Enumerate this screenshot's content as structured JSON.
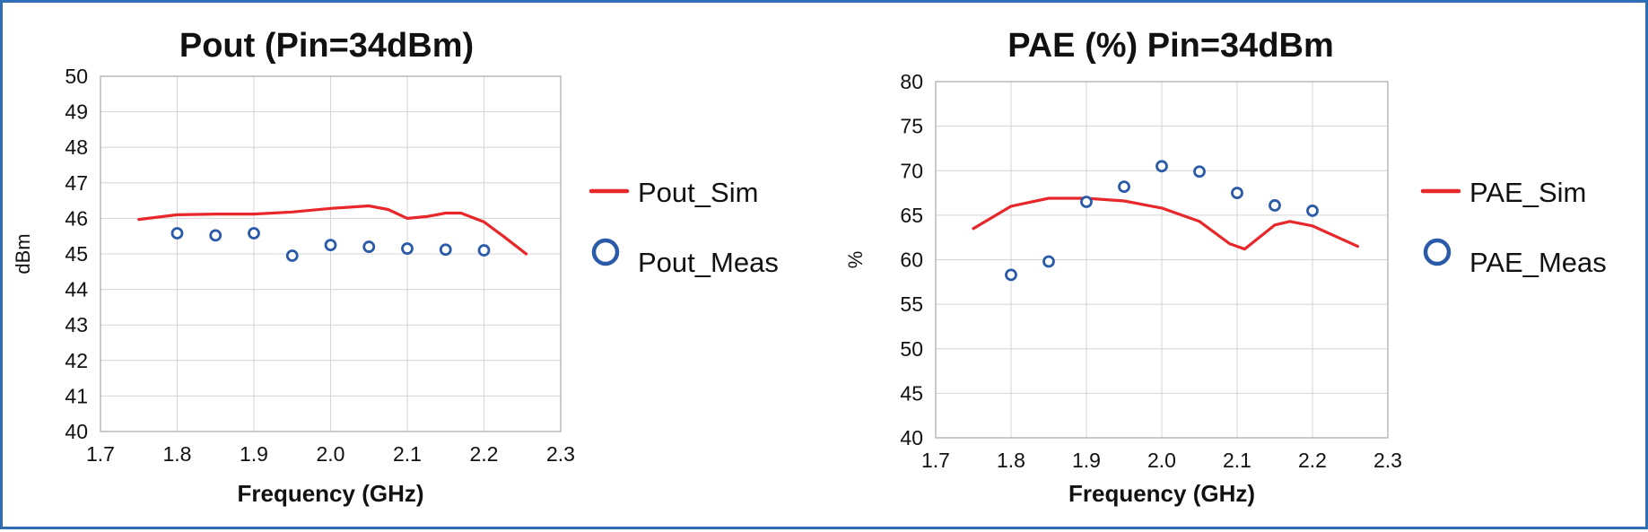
{
  "chart_data": [
    {
      "type": "line",
      "title": "Pout (Pin=34dBm)",
      "xlabel": "Frequency (GHz)",
      "ylabel": "dBm",
      "xlim": [
        1.7,
        2.3
      ],
      "ylim": [
        40,
        50
      ],
      "x_ticks": [
        "1.7",
        "1.8",
        "1.9",
        "2.0",
        "2.1",
        "2.2",
        "2.3"
      ],
      "y_ticks": [
        "40",
        "41",
        "42",
        "43",
        "44",
        "45",
        "46",
        "47",
        "48",
        "49",
        "50"
      ],
      "grid": true,
      "legend_position": "right",
      "series": [
        {
          "name": "Pout_Sim",
          "kind": "line",
          "color": "#e8272a",
          "x": [
            1.75,
            1.8,
            1.85,
            1.9,
            1.95,
            2.0,
            2.05,
            2.075,
            2.1,
            2.125,
            2.15,
            2.17,
            2.2,
            2.225,
            2.255
          ],
          "y": [
            45.97,
            46.1,
            46.12,
            46.12,
            46.18,
            46.28,
            46.35,
            46.25,
            46.0,
            46.05,
            46.15,
            46.15,
            45.9,
            45.5,
            45.0
          ]
        },
        {
          "name": "Pout_Meas",
          "kind": "scatter",
          "color": "#2a5aa8",
          "x": [
            1.8,
            1.85,
            1.9,
            1.95,
            2.0,
            2.05,
            2.1,
            2.15,
            2.2
          ],
          "y": [
            45.58,
            45.52,
            45.58,
            44.95,
            45.25,
            45.2,
            45.15,
            45.12,
            45.1
          ]
        }
      ]
    },
    {
      "type": "line",
      "title": "PAE (%) Pin=34dBm",
      "xlabel": "Frequency (GHz)",
      "ylabel": "%",
      "xlim": [
        1.7,
        2.3
      ],
      "ylim": [
        40,
        80
      ],
      "x_ticks": [
        "1.7",
        "1.8",
        "1.9",
        "2.0",
        "2.1",
        "2.2",
        "2.3"
      ],
      "y_ticks": [
        "40",
        "45",
        "50",
        "55",
        "60",
        "65",
        "70",
        "75",
        "80"
      ],
      "grid": true,
      "legend_position": "right",
      "series": [
        {
          "name": "PAE_Sim",
          "kind": "line",
          "color": "#e8272a",
          "x": [
            1.75,
            1.8,
            1.85,
            1.9,
            1.95,
            2.0,
            2.05,
            2.09,
            2.11,
            2.15,
            2.17,
            2.2,
            2.26
          ],
          "y": [
            63.5,
            66.0,
            66.9,
            66.9,
            66.6,
            65.8,
            64.3,
            61.8,
            61.2,
            63.9,
            64.3,
            63.8,
            61.5
          ]
        },
        {
          "name": "PAE_Meas",
          "kind": "scatter",
          "color": "#2a5aa8",
          "x": [
            1.8,
            1.85,
            1.9,
            1.95,
            2.0,
            2.05,
            2.1,
            2.15,
            2.2
          ],
          "y": [
            58.3,
            59.8,
            66.5,
            68.2,
            70.5,
            69.9,
            67.5,
            66.1,
            65.5
          ]
        }
      ]
    }
  ]
}
